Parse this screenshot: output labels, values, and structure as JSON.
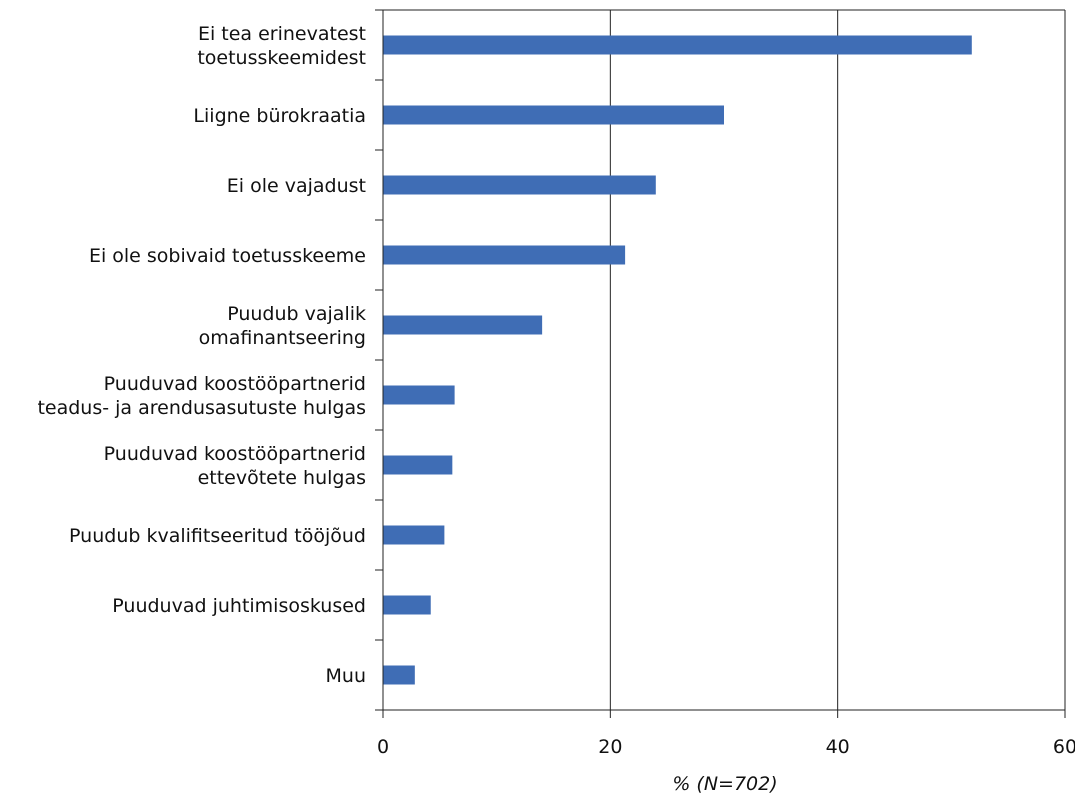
{
  "chart_data": {
    "type": "bar",
    "orientation": "horizontal",
    "categories": [
      [
        "Ei tea erinevatest",
        "toetusskeemidest"
      ],
      [
        "Liigne bürokraatia"
      ],
      [
        "Ei ole vajadust"
      ],
      [
        "Ei ole sobivaid toetusskeeme"
      ],
      [
        "Puudub vajalik",
        "omafinantseering"
      ],
      [
        "Puuduvad koostööpartnerid",
        "teadus- ja arendusasutuste hulgas"
      ],
      [
        "Puuduvad koostööpartnerid",
        "ettevõtete hulgas"
      ],
      [
        "Puudub kvalifitseeritud tööjõud"
      ],
      [
        "Puuduvad juhtimisoskused"
      ],
      [
        "Muu"
      ]
    ],
    "values": [
      51.8,
      30.0,
      24.0,
      21.3,
      14.0,
      6.3,
      6.1,
      5.4,
      4.2,
      2.8
    ],
    "xlim": [
      0,
      60
    ],
    "xticks": [
      0,
      20,
      40,
      60
    ],
    "xlabel": "% (N=702)",
    "ylabel": "",
    "grid": "vertical",
    "bar_color": "#3f6db5",
    "axis_color": "#222222",
    "legend": "none"
  }
}
